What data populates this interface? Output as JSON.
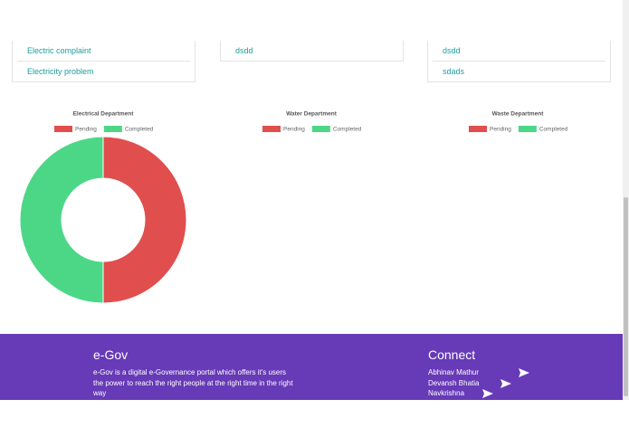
{
  "lists": [
    {
      "items": [
        "Electric complaint",
        "Electricity problem"
      ]
    },
    {
      "items": [
        "dsdd"
      ]
    },
    {
      "items": [
        "dsdd",
        "sdads"
      ]
    }
  ],
  "chart_data": [
    {
      "type": "doughnut",
      "title": "Electrical Department",
      "categories": [
        "Pending",
        "Completed"
      ],
      "colors": [
        "#e04e4e",
        "#4cd787"
      ],
      "values": [
        50,
        50
      ]
    },
    {
      "type": "doughnut",
      "title": "Water Department",
      "categories": [
        "Pending",
        "Completed"
      ],
      "colors": [
        "#e04e4e",
        "#4cd787"
      ]
    },
    {
      "type": "doughnut",
      "title": "Waste Department",
      "categories": [
        "Pending",
        "Completed"
      ],
      "colors": [
        "#e04e4e",
        "#4cd787"
      ]
    }
  ],
  "footer": {
    "brand": "e-Gov",
    "description": "e-Gov is a digital e-Governance portal which offers it's users the power to reach the right people at the right time in the right way",
    "connect_title": "Connect",
    "people": [
      "Abhinav Mathur",
      "Devansh Bhatia",
      "Navkrishna"
    ]
  }
}
